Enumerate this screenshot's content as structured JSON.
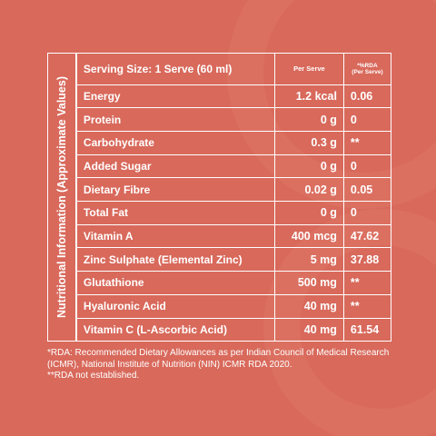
{
  "table": {
    "side_label": "Nutritional Information (Approximate Values)",
    "header": {
      "serving_size": "Serving Size: 1 Serve (60 ml)",
      "per_serve": "Per Serve",
      "rda": "*%RDA",
      "rda_sub": "(Per Serve)"
    },
    "rows": [
      [
        "Energy",
        "1.2 kcal",
        "0.06"
      ],
      [
        "Protein",
        "0 g",
        "0"
      ],
      [
        "Carbohydrate",
        "0.3 g",
        "**"
      ],
      [
        "Added Sugar",
        "0 g",
        "0"
      ],
      [
        "Dietary Fibre",
        "0.02 g",
        "0.05"
      ],
      [
        "Total Fat",
        "0 g",
        "0"
      ],
      [
        "Vitamin A",
        "400 mcg",
        "47.62"
      ],
      [
        "Zinc Sulphate (Elemental Zinc)",
        "5 mg",
        "37.88"
      ],
      [
        "Glutathione",
        "500 mg",
        "**"
      ],
      [
        "Hyaluronic Acid",
        "40 mg",
        "**"
      ],
      [
        "Vitamin C (L-Ascorbic Acid)",
        "40 mg",
        "61.54"
      ]
    ]
  },
  "footnotes": [
    "*RDA: Recommended Dietary Allowances as per Indian Council of Medical Research (ICMR), National Institute of Nutrition (NIN) ICMR RDA 2020.",
    "**RDA not established."
  ]
}
